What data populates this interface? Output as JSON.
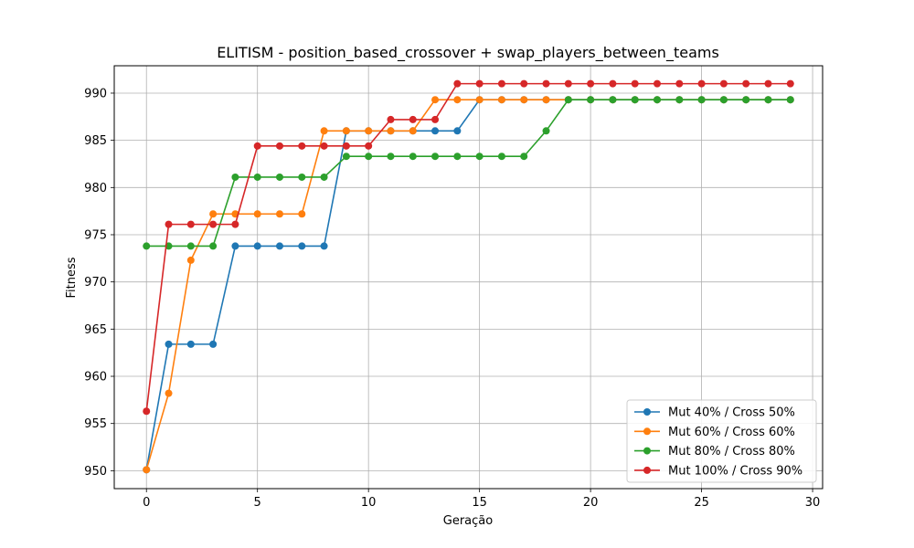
{
  "chart_data": {
    "type": "line",
    "title": "ELITISM - position_based_crossover + swap_players_between_teams",
    "xlabel": "Geração",
    "ylabel": "Fitness",
    "xlim": [
      -1.45,
      30.45
    ],
    "ylim": [
      948.1,
      992.9
    ],
    "xticks": [
      0,
      5,
      10,
      15,
      20,
      25,
      30
    ],
    "yticks": [
      950,
      955,
      960,
      965,
      970,
      975,
      980,
      985,
      990
    ],
    "grid": true,
    "legend_position": "lower-right",
    "x": [
      0,
      1,
      2,
      3,
      4,
      5,
      6,
      7,
      8,
      9,
      10,
      11,
      12,
      13,
      14,
      15,
      16,
      17,
      18,
      19,
      20,
      21,
      22,
      23,
      24,
      25,
      26,
      27,
      28,
      29
    ],
    "series": [
      {
        "name": "Mut 40% / Cross 50%",
        "color": "#1f77b4",
        "values": [
          950.1,
          963.4,
          963.4,
          963.4,
          973.8,
          973.8,
          973.8,
          973.8,
          973.8,
          986.0,
          986.0,
          986.0,
          986.0,
          986.0,
          986.0,
          989.3,
          989.3,
          989.3,
          989.3,
          989.3,
          989.3,
          989.3,
          989.3,
          989.3,
          989.3,
          989.3,
          989.3,
          989.3,
          989.3,
          989.3
        ]
      },
      {
        "name": "Mut 60% / Cross 60%",
        "color": "#ff7f0e",
        "values": [
          950.1,
          958.2,
          972.3,
          977.2,
          977.2,
          977.2,
          977.2,
          977.2,
          986.0,
          986.0,
          986.0,
          986.0,
          986.0,
          989.3,
          989.3,
          989.3,
          989.3,
          989.3,
          989.3,
          989.3,
          989.3,
          989.3,
          989.3,
          989.3,
          989.3,
          989.3,
          989.3,
          989.3,
          989.3,
          989.3
        ]
      },
      {
        "name": "Mut 80% / Cross 80%",
        "color": "#2ca02c",
        "values": [
          973.8,
          973.8,
          973.8,
          973.8,
          981.1,
          981.1,
          981.1,
          981.1,
          981.1,
          983.3,
          983.3,
          983.3,
          983.3,
          983.3,
          983.3,
          983.3,
          983.3,
          983.3,
          986.0,
          989.3,
          989.3,
          989.3,
          989.3,
          989.3,
          989.3,
          989.3,
          989.3,
          989.3,
          989.3,
          989.3
        ]
      },
      {
        "name": "Mut 100% / Cross 90%",
        "color": "#d62728",
        "values": [
          956.3,
          976.1,
          976.1,
          976.1,
          976.1,
          984.4,
          984.4,
          984.4,
          984.4,
          984.4,
          984.4,
          987.2,
          987.2,
          987.2,
          991.0,
          991.0,
          991.0,
          991.0,
          991.0,
          991.0,
          991.0,
          991.0,
          991.0,
          991.0,
          991.0,
          991.0,
          991.0,
          991.0,
          991.0,
          991.0
        ]
      }
    ]
  }
}
